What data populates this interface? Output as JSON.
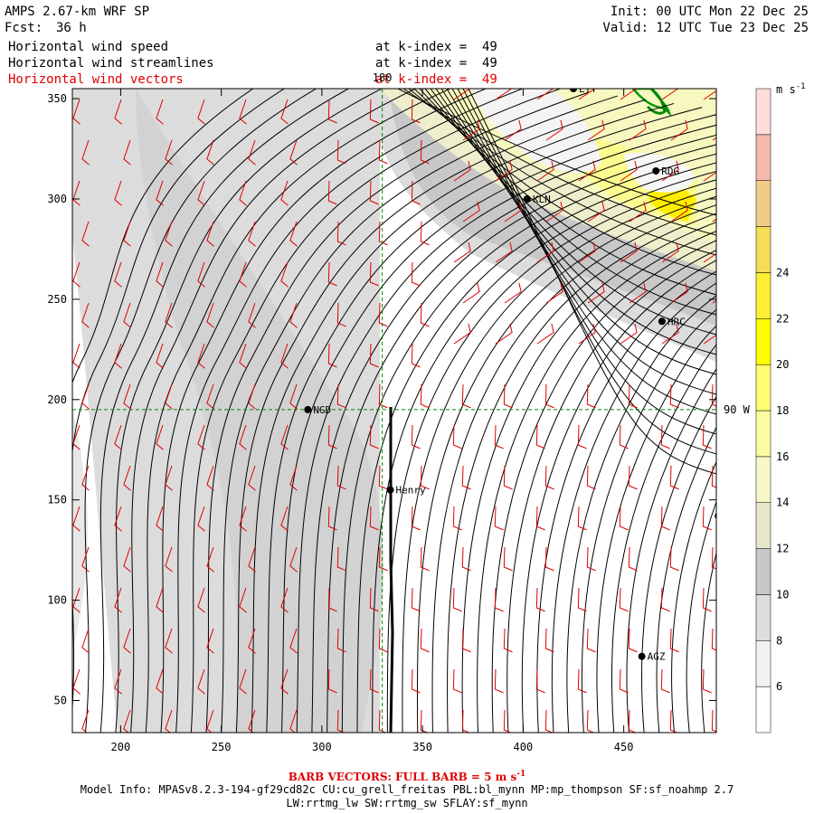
{
  "header": {
    "model_title": "AMPS 2.67-km WRF SP",
    "forecast_label": "Fcst:",
    "forecast_hours": "36 h",
    "init_text": "Init: 00 UTC Mon 22 Dec 25",
    "valid_text": "Valid: 12 UTC Tue 23 Dec 25"
  },
  "fields": [
    {
      "name": "Horizontal wind speed",
      "level": "at k-index =  49",
      "color": "#000000"
    },
    {
      "name": "Horizontal wind streamlines",
      "level": "at k-index =  49",
      "color": "#000000"
    },
    {
      "name": "Horizontal wind vectors",
      "level": "at k-index =  49",
      "color": "#e00000"
    }
  ],
  "map": {
    "lon_lines": [
      {
        "label": "180",
        "x_value": 330
      }
    ],
    "lat_lines": [
      {
        "label": "90 W",
        "y_value": 195
      }
    ],
    "stations": [
      {
        "label": "LYT",
        "x": 425,
        "y": 355
      },
      {
        "label": "RDG",
        "x": 466,
        "y": 314
      },
      {
        "label": "KLN",
        "x": 402,
        "y": 300
      },
      {
        "label": "HRC",
        "x": 469,
        "y": 239
      },
      {
        "label": "NGD",
        "x": 293,
        "y": 195
      },
      {
        "label": "Henry",
        "x": 334,
        "y": 155
      },
      {
        "label": "",
        "x": 497,
        "y": 142
      },
      {
        "label": "AGZ",
        "x": 459,
        "y": 72
      }
    ]
  },
  "axes": {
    "x_ticks": [
      "200",
      "250",
      "300",
      "350",
      "400",
      "450"
    ],
    "x_values": [
      200,
      250,
      300,
      350,
      400,
      450
    ],
    "x_range": [
      176,
      496
    ],
    "y_ticks": [
      "50",
      "100",
      "150",
      "200",
      "250",
      "300",
      "350"
    ],
    "y_values": [
      50,
      100,
      150,
      200,
      250,
      300,
      350
    ],
    "y_range": [
      34,
      355
    ]
  },
  "colorbar": {
    "units": "m s",
    "units_exp": "-1",
    "labels": [
      "6",
      "8",
      "10",
      "12",
      "14",
      "16",
      "18",
      "20",
      "22",
      "24"
    ],
    "colors": [
      "#ffffff",
      "#f2f2f2",
      "#dddddd",
      "#c8c8c8",
      "#e6e6cc",
      "#f7f7c8",
      "#fbfba0",
      "#ffff70",
      "#ffff00",
      "#ffee33",
      "#f5dd55",
      "#f0cc88",
      "#f5bbaa",
      "#ffdddd"
    ]
  },
  "footer": {
    "barb_note": "BARB VECTORS:  FULL BARB = 5 m s",
    "barb_exp": "-1",
    "model_info": "Model Info: MPASv8.2.3-194-gf29cd82c CU:cu_grell_freitas PBL:bl_mynn MP:mp_thompson SF:sf_noahmp 2.7",
    "model_info2": "LW:rrtmg_lw SW:rrtmg_sw SFLAY:sf_mynn"
  }
}
